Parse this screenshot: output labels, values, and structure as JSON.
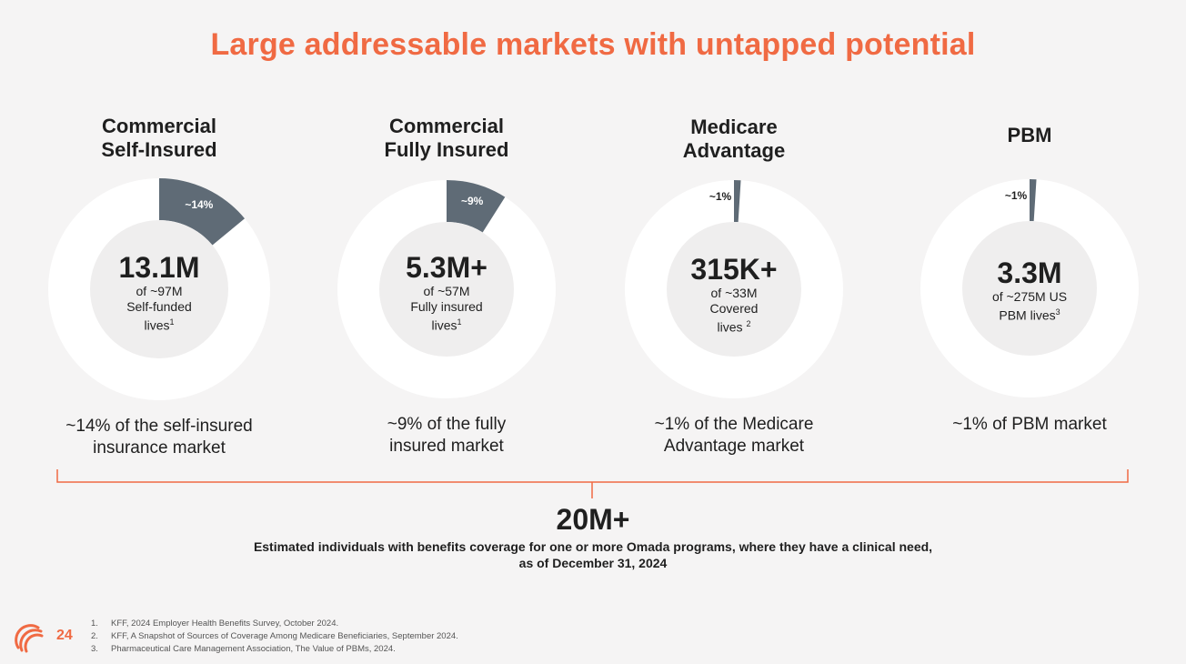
{
  "title": "Large addressable markets with untapped potential",
  "chart_data": [
    {
      "type": "pie",
      "title": "Commercial Self-Insured",
      "title_lines": [
        "Commercial",
        "Self-Insured"
      ],
      "share_percent": 14,
      "slice_label": "~14%",
      "value_label": "13.1M",
      "subtext_lines": [
        "of ~97M",
        "Self-funded"
      ],
      "last_line": "lives",
      "footnote_ref": "1",
      "caption_lines": [
        "~14% of the self-insured",
        "insurance market"
      ]
    },
    {
      "type": "pie",
      "title": "Commercial Fully Insured",
      "title_lines": [
        "Commercial",
        "Fully Insured"
      ],
      "share_percent": 9,
      "slice_label": "~9%",
      "value_label": "5.3M+",
      "subtext_lines": [
        "of ~57M",
        "Fully insured"
      ],
      "last_line": "lives",
      "footnote_ref": "1",
      "caption_lines": [
        "~9% of the fully",
        "insured market"
      ]
    },
    {
      "type": "pie",
      "title": "Medicare Advantage",
      "title_lines": [
        "Medicare",
        "Advantage"
      ],
      "share_percent": 1,
      "slice_label": "~1%",
      "value_label": "315K+",
      "subtext_lines": [
        "of ~33M",
        "Covered"
      ],
      "last_line": "lives",
      "footnote_ref": "2",
      "caption_lines": [
        "~1% of the Medicare",
        "Advantage market"
      ]
    },
    {
      "type": "pie",
      "title": "PBM",
      "title_lines": [
        "PBM"
      ],
      "share_percent": 1,
      "slice_label": "~1%",
      "value_label": "3.3M",
      "subtext_lines": [
        "of ~275M US"
      ],
      "last_line": "PBM lives",
      "footnote_ref": "3",
      "caption_lines": [
        "~1% of PBM market"
      ]
    }
  ],
  "total": {
    "value": "20M+",
    "description_line1": "Estimated individuals with benefits coverage for one or more Omada programs, where they have a clinical need,",
    "description_line2": "as of December 31, 2024"
  },
  "page_number": "24",
  "footnotes": [
    {
      "num": "1.",
      "text": "KFF, 2024 Employer Health Benefits Survey, October 2024."
    },
    {
      "num": "2.",
      "text": "KFF, A Snapshot of Sources of Coverage Among Medicare Beneficiaries, September 2024."
    },
    {
      "num": "3.",
      "text": "Pharmaceutical Care Management Association, The Value of PBMs, 2024."
    }
  ],
  "colors": {
    "accent": "#f06a43",
    "slice": "#5f6b76",
    "ring": "#ffffff",
    "inner": "#efeeee",
    "text": "#1f1f1f"
  }
}
